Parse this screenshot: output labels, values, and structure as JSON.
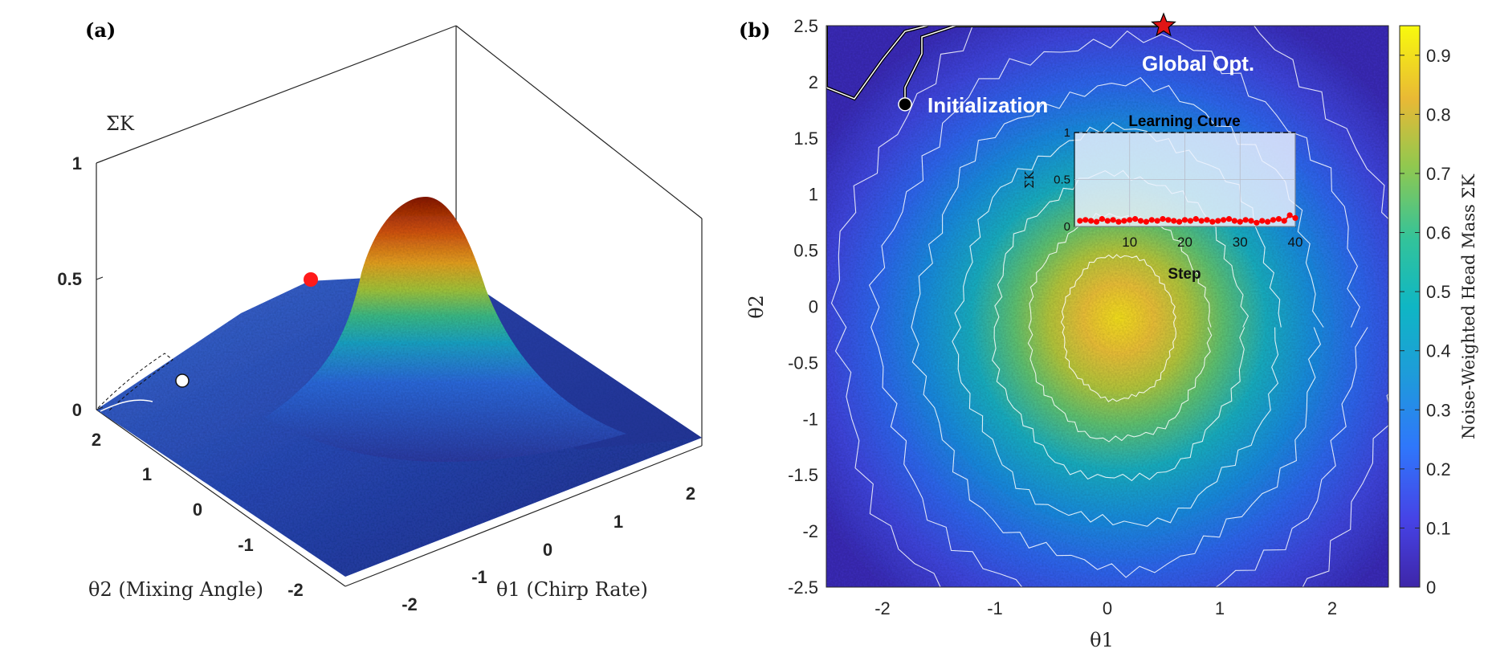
{
  "chart_data": [
    {
      "panel": "(a)",
      "type": "surface3d",
      "title": "",
      "xlabel": "θ1 (Chirp Rate)",
      "ylabel": "θ2 (Mixing Angle)",
      "zlabel": "ΣK",
      "xlim": [
        -2.5,
        2.5
      ],
      "ylim": [
        -2.5,
        2.5
      ],
      "zlim": [
        0,
        1
      ],
      "x_ticks": [
        "-2",
        "-1",
        "0",
        "1",
        "2"
      ],
      "y_ticks": [
        "-2",
        "-1",
        "0",
        "1",
        "2"
      ],
      "z_ticks": [
        "0",
        "0.5",
        "1"
      ],
      "peak": {
        "x": 0.1,
        "y": -0.1,
        "z": 0.95
      },
      "markers": [
        {
          "name": "Initialization",
          "x": -1.8,
          "y": 1.8,
          "color": "#ffffff"
        },
        {
          "name": "Global Opt.",
          "x": 0.5,
          "y": 2.5,
          "color": "#ff0000"
        }
      ]
    },
    {
      "panel": "(b)",
      "type": "heatmap",
      "xlabel": "θ1",
      "ylabel": "θ2",
      "xlim": [
        -2.5,
        2.5
      ],
      "ylim": [
        -2.5,
        2.5
      ],
      "x_ticks": [
        "-2",
        "-1",
        "0",
        "1",
        "2"
      ],
      "y_ticks": [
        "2.5",
        "2",
        "1.5",
        "1",
        "0.5",
        "0",
        "-0.5",
        "-1",
        "-1.5",
        "-2",
        "-2.5"
      ],
      "colorbar": {
        "label": "Noise-Weighted Head Mass ΣK",
        "ticks": [
          "0",
          "0.1",
          "0.2",
          "0.3",
          "0.4",
          "0.5",
          "0.6",
          "0.7",
          "0.8",
          "0.9"
        ],
        "range": [
          0,
          0.95
        ]
      },
      "peak": {
        "x": 0.1,
        "y": -0.1,
        "value": 0.95
      },
      "contour_levels": [
        0.1,
        0.2,
        0.3,
        0.4,
        0.5,
        0.6,
        0.7
      ],
      "annotations": {
        "init_label": "Initialization",
        "opt_label": "Global Opt."
      },
      "markers": [
        {
          "name": "Initialization",
          "x": -1.8,
          "y": 1.8,
          "color": "#000000"
        },
        {
          "name": "Global Opt.",
          "x": 0.5,
          "y": 2.5,
          "color": "#ff0000"
        }
      ],
      "trajectory": [
        [
          -1.8,
          1.8
        ],
        [
          -1.8,
          1.95
        ],
        [
          -1.65,
          2.25
        ],
        [
          -1.65,
          2.4
        ],
        [
          -1.35,
          2.5
        ],
        [
          0.5,
          2.5
        ]
      ],
      "boundary": [
        [
          -2.5,
          2.5
        ],
        [
          -2.5,
          1.95
        ],
        [
          -2.25,
          1.85
        ],
        [
          -2.0,
          2.2
        ],
        [
          -1.8,
          2.45
        ],
        [
          -1.6,
          2.5
        ]
      ],
      "inset": {
        "title": "Learning Curve",
        "xlabel": "Step",
        "ylabel": "ΣK",
        "xlim": [
          0,
          40
        ],
        "ylim": [
          0,
          1
        ],
        "x_ticks": [
          "10",
          "20",
          "30",
          "40"
        ],
        "y_ticks": [
          "0",
          "0.5",
          "1"
        ],
        "steps": [
          1,
          2,
          3,
          4,
          5,
          6,
          7,
          8,
          9,
          10,
          11,
          12,
          13,
          14,
          15,
          16,
          17,
          18,
          19,
          20,
          21,
          22,
          23,
          24,
          25,
          26,
          27,
          28,
          29,
          30,
          31,
          32,
          33,
          34,
          35,
          36,
          37,
          38,
          39,
          40
        ],
        "values": [
          0.06,
          0.07,
          0.06,
          0.05,
          0.08,
          0.06,
          0.07,
          0.05,
          0.06,
          0.07,
          0.08,
          0.06,
          0.05,
          0.07,
          0.06,
          0.08,
          0.07,
          0.06,
          0.05,
          0.07,
          0.06,
          0.08,
          0.06,
          0.07,
          0.05,
          0.06,
          0.07,
          0.08,
          0.06,
          0.05,
          0.07,
          0.06,
          0.04,
          0.06,
          0.05,
          0.07,
          0.08,
          0.06,
          0.12,
          0.09
        ]
      }
    }
  ]
}
